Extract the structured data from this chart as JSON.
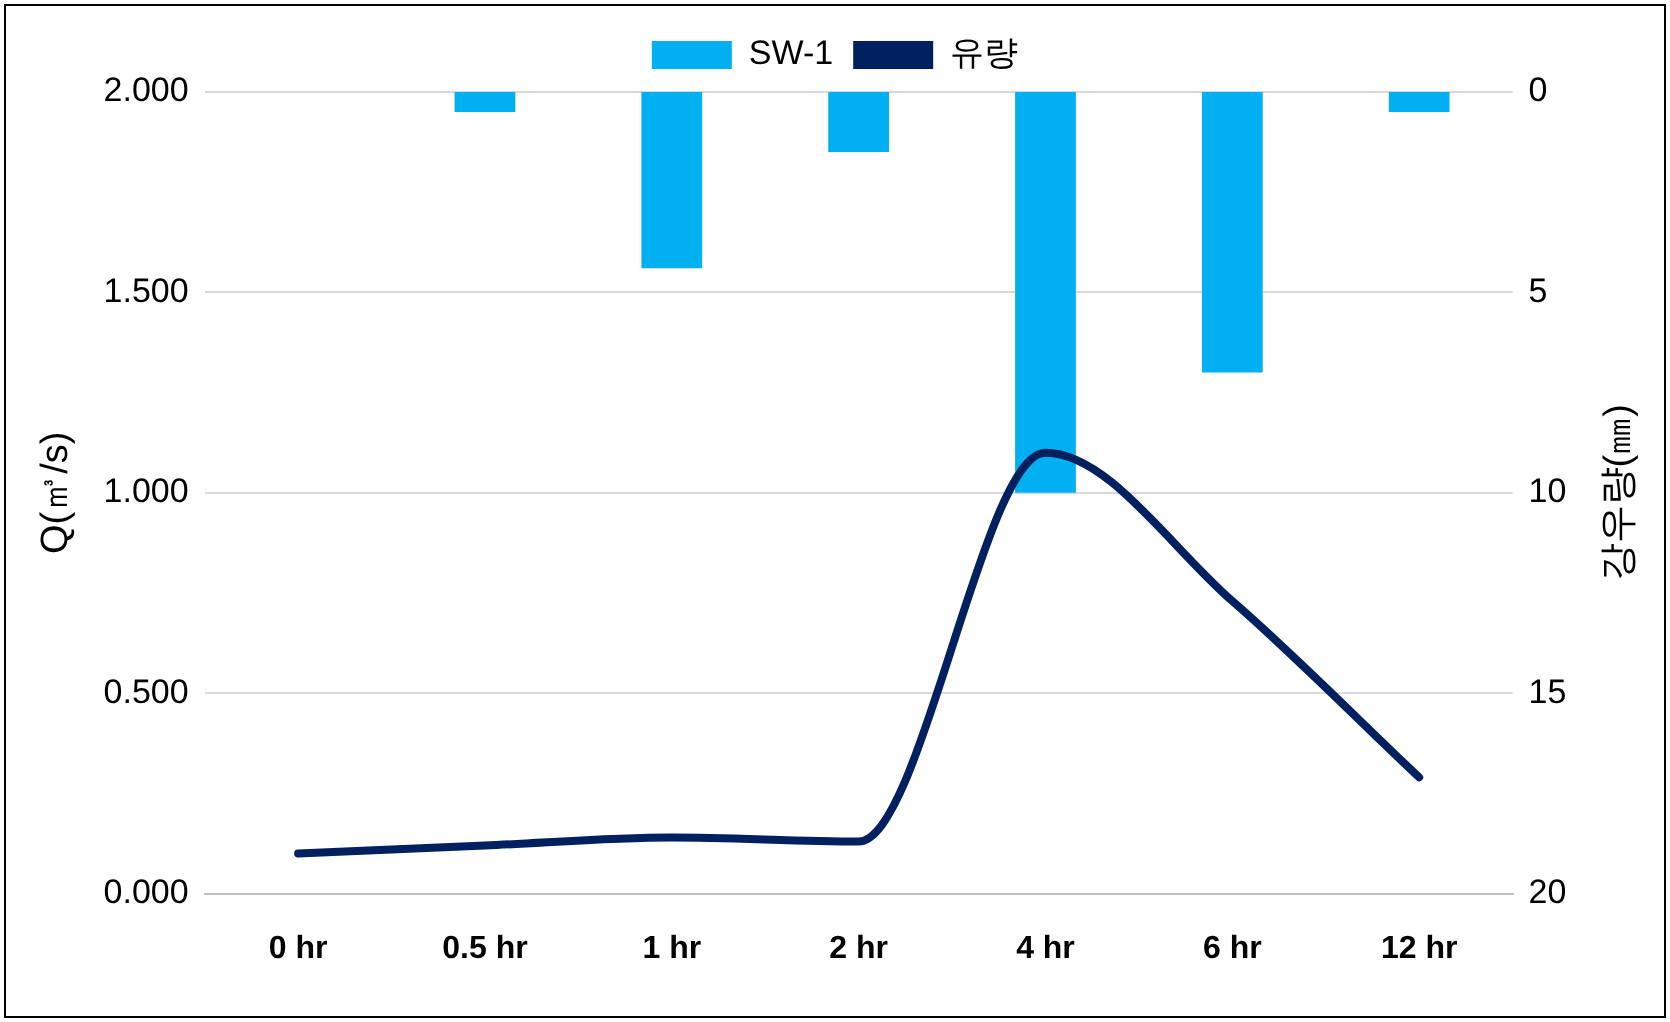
{
  "chart_data": {
    "type": "line",
    "categories": [
      "0 hr",
      "0.5 hr",
      "1 hr",
      "2 hr",
      "4 hr",
      "6 hr",
      "12 hr"
    ],
    "series": [
      {
        "name": "SW-1",
        "type": "bar",
        "axis": "y2",
        "color": "#00b0f0",
        "values": [
          0,
          0.5,
          4.4,
          1.5,
          10,
          7,
          0.5
        ]
      },
      {
        "name": "유량",
        "color": "#002060",
        "values": [
          0.1,
          0.12,
          0.14,
          0.13,
          1.1,
          0.73,
          0.29
        ]
      }
    ],
    "ylabel": "Q(㎥/s)",
    "y2label": "강우량(㎜)",
    "ylim": [
      0,
      2
    ],
    "yticks": [
      {
        "value": 0,
        "label": "0.000"
      },
      {
        "value": 0.5,
        "label": "0.500"
      },
      {
        "value": 1,
        "label": "1.000"
      },
      {
        "value": 1.5,
        "label": "1.500"
      },
      {
        "value": 2,
        "label": "2.000"
      }
    ],
    "y2lim": [
      20,
      0
    ],
    "y2ticks": [
      20,
      15,
      10,
      5,
      0
    ],
    "grid": "y",
    "legend": "top",
    "marker": "none",
    "line_style": "solid"
  }
}
